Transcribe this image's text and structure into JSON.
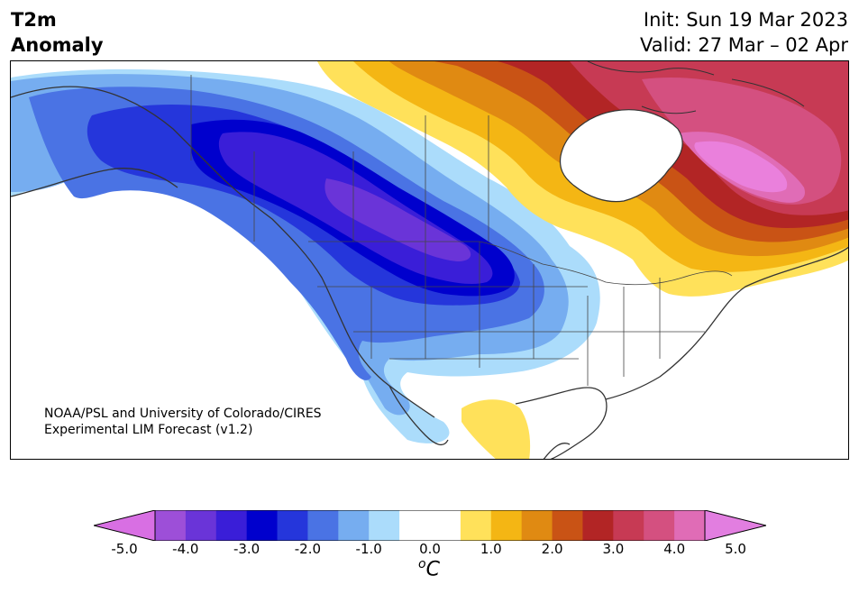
{
  "title": {
    "left_line1": "T2m",
    "left_line2": "Anomaly",
    "init": "Init: Sun 19 Mar 2023",
    "valid": "Valid: 27 Mar – 02 Apr"
  },
  "credit": {
    "line1": "NOAA/PSL and University of Colorado/CIRES",
    "line2": "Experimental LIM Forecast (v1.2)"
  },
  "colorbar": {
    "unit": "°C",
    "unit_sup": "o",
    "unit_letter": "C",
    "tick_labels": [
      "-5.0",
      "-4.0",
      "-3.0",
      "-2.0",
      "-1.0",
      "0.0",
      "1.0",
      "2.0",
      "3.0",
      "4.0",
      "5.0"
    ],
    "colors": [
      "#d86fe3",
      "#9d4fd8",
      "#6a34d8",
      "#3a1ed8",
      "#0000cd",
      "#2536db",
      "#4a73e4",
      "#76adf0",
      "#abdcfb",
      "#ffffff",
      "#ffffff",
      "#ffe15a",
      "#f4b614",
      "#e08a12",
      "#c95315",
      "#b22525",
      "#c73a54",
      "#d45080",
      "#e06cb6",
      "#ea80dc"
    ],
    "extend_low_color": "#d86fe3",
    "extend_high_color": "#e27ee0"
  },
  "colors": {
    "cold_strong": "#0000cd",
    "warm_strong": "#b22525",
    "neutral": "#ffffff"
  }
}
